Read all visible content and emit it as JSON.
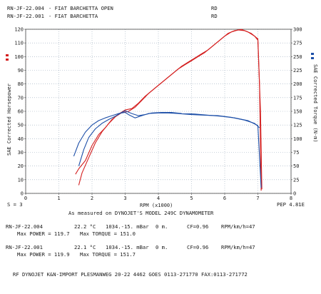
{
  "header": {
    "run1_id": "RN-JF-22.004",
    "run1_desc": "- FIAT BARCHETTA OPEN",
    "run1_code": "RD",
    "run2_id": "RN-JF-22.001",
    "run2_desc": "- FIAT BARCHETTA",
    "run2_code": "RD"
  },
  "meta": {
    "smoothing": "S = 3",
    "pep": "PEP 4.81E",
    "measured": "As measured on DYNOJET'S MODEL 249C DYNAMOMETER"
  },
  "runs": [
    {
      "id": "RN-JF-22.004",
      "temp": "22.2 °C",
      "pressure": "1034.-15. mBar",
      "alt": "0 m.",
      "cf": "CF=0.96",
      "rpm_kmh": "RPM/km/h=47",
      "max_power": "Max POWER = 119.7",
      "max_torque": "Max TORQUE = 151.0"
    },
    {
      "id": "RN-JF-22.001",
      "temp": "22.1 °C",
      "pressure": "1034.-15. mBar",
      "alt": "0 m.",
      "cf": "CF=0.96",
      "rpm_kmh": "RPM/km/h=47",
      "max_power": "Max POWER = 119.9",
      "max_torque": "Max TORQUE = 151.7"
    }
  ],
  "footer": "RF DYNOJET K&N-IMPORT PLESMANWEG 20-22 4462 GOES 0113-271770 FAX:0113-271772",
  "colors": {
    "power": "#d42020",
    "torque": "#1d4fa8",
    "grid": "#9ab"
  },
  "chart_data": {
    "type": "line",
    "title": "",
    "xlabel": "RPM (x1000)",
    "ylabel_left": "SAE Corrected Horsepower",
    "ylabel_right": "SAE Corrected Torque (N-m)",
    "xlim": [
      0,
      8
    ],
    "ylim_left": [
      0,
      120
    ],
    "ylim_right": [
      0,
      300
    ],
    "x_ticks": [
      "0",
      "1",
      "2",
      "3",
      "4",
      "5",
      "6",
      "7",
      "8"
    ],
    "y_left_ticks": [
      "0",
      "10",
      "20",
      "30",
      "40",
      "50",
      "60",
      "70",
      "80",
      "90",
      "100",
      "110",
      "120"
    ],
    "y_right_ticks": [
      "0",
      "25",
      "50",
      "75",
      "100",
      "125",
      "150",
      "175",
      "200",
      "225",
      "250",
      "275",
      "300"
    ],
    "grid": true,
    "series": [
      {
        "axis": "left",
        "color": "#d42020",
        "points": [
          [
            1.5,
            14
          ],
          [
            1.6,
            18
          ],
          [
            1.8,
            24
          ],
          [
            2.0,
            35
          ],
          [
            2.2,
            43
          ],
          [
            2.4,
            48
          ],
          [
            2.6,
            54
          ],
          [
            2.8,
            58
          ],
          [
            3.0,
            61
          ],
          [
            3.2,
            62
          ],
          [
            3.4,
            66
          ],
          [
            3.6,
            71
          ],
          [
            3.8,
            75
          ],
          [
            4.0,
            79
          ],
          [
            4.2,
            83
          ],
          [
            4.4,
            87
          ],
          [
            4.6,
            91
          ],
          [
            4.8,
            94
          ],
          [
            5.0,
            97
          ],
          [
            5.2,
            100
          ],
          [
            5.4,
            103
          ],
          [
            5.6,
            107
          ],
          [
            5.8,
            111
          ],
          [
            6.0,
            115
          ],
          [
            6.2,
            118
          ],
          [
            6.4,
            119.5
          ],
          [
            6.6,
            119
          ],
          [
            6.8,
            117
          ],
          [
            7.0,
            113
          ],
          [
            7.05,
            80
          ],
          [
            7.1,
            2
          ]
        ]
      },
      {
        "axis": "left",
        "color": "#d42020",
        "points": [
          [
            1.6,
            6
          ],
          [
            1.7,
            15
          ],
          [
            1.9,
            26
          ],
          [
            2.1,
            37
          ],
          [
            2.3,
            45
          ],
          [
            2.5,
            51
          ],
          [
            2.7,
            56
          ],
          [
            2.9,
            59
          ],
          [
            3.1,
            60
          ],
          [
            3.3,
            63
          ],
          [
            3.5,
            68
          ],
          [
            3.7,
            73
          ],
          [
            3.9,
            77
          ],
          [
            4.1,
            81
          ],
          [
            4.3,
            85
          ],
          [
            4.5,
            89
          ],
          [
            4.7,
            93
          ],
          [
            4.9,
            96
          ],
          [
            5.1,
            99
          ],
          [
            5.3,
            102
          ],
          [
            5.5,
            105
          ],
          [
            5.7,
            109
          ],
          [
            5.9,
            113
          ],
          [
            6.1,
            117
          ],
          [
            6.3,
            119
          ],
          [
            6.5,
            119.9
          ],
          [
            6.7,
            118
          ],
          [
            6.9,
            115
          ],
          [
            7.0,
            112
          ],
          [
            7.08,
            60
          ],
          [
            7.12,
            3
          ]
        ]
      },
      {
        "axis": "right",
        "color": "#1d4fa8",
        "points": [
          [
            1.45,
            68
          ],
          [
            1.6,
            92
          ],
          [
            1.8,
            112
          ],
          [
            2.0,
            125
          ],
          [
            2.2,
            133
          ],
          [
            2.4,
            138
          ],
          [
            2.6,
            142
          ],
          [
            2.8,
            146
          ],
          [
            3.0,
            148
          ],
          [
            3.1,
            144
          ],
          [
            3.3,
            138
          ],
          [
            3.5,
            142
          ],
          [
            3.7,
            146
          ],
          [
            4.0,
            147
          ],
          [
            4.3,
            147
          ],
          [
            4.6,
            146
          ],
          [
            5.0,
            144
          ],
          [
            5.4,
            143
          ],
          [
            5.8,
            142
          ],
          [
            6.2,
            139
          ],
          [
            6.6,
            134
          ],
          [
            6.9,
            128
          ],
          [
            7.05,
            120
          ]
        ]
      },
      {
        "axis": "right",
        "color": "#1d4fa8",
        "points": [
          [
            1.6,
            50
          ],
          [
            1.75,
            80
          ],
          [
            1.9,
            102
          ],
          [
            2.1,
            118
          ],
          [
            2.3,
            128
          ],
          [
            2.5,
            135
          ],
          [
            2.7,
            141
          ],
          [
            2.9,
            148
          ],
          [
            3.0,
            151
          ],
          [
            3.2,
            146
          ],
          [
            3.4,
            142
          ],
          [
            3.6,
            144
          ],
          [
            3.8,
            147
          ],
          [
            4.1,
            148
          ],
          [
            4.4,
            148
          ],
          [
            4.7,
            146
          ],
          [
            5.1,
            145
          ],
          [
            5.5,
            143
          ],
          [
            5.9,
            141
          ],
          [
            6.3,
            138
          ],
          [
            6.7,
            133
          ],
          [
            7.0,
            124
          ],
          [
            7.1,
            10
          ]
        ]
      }
    ]
  }
}
